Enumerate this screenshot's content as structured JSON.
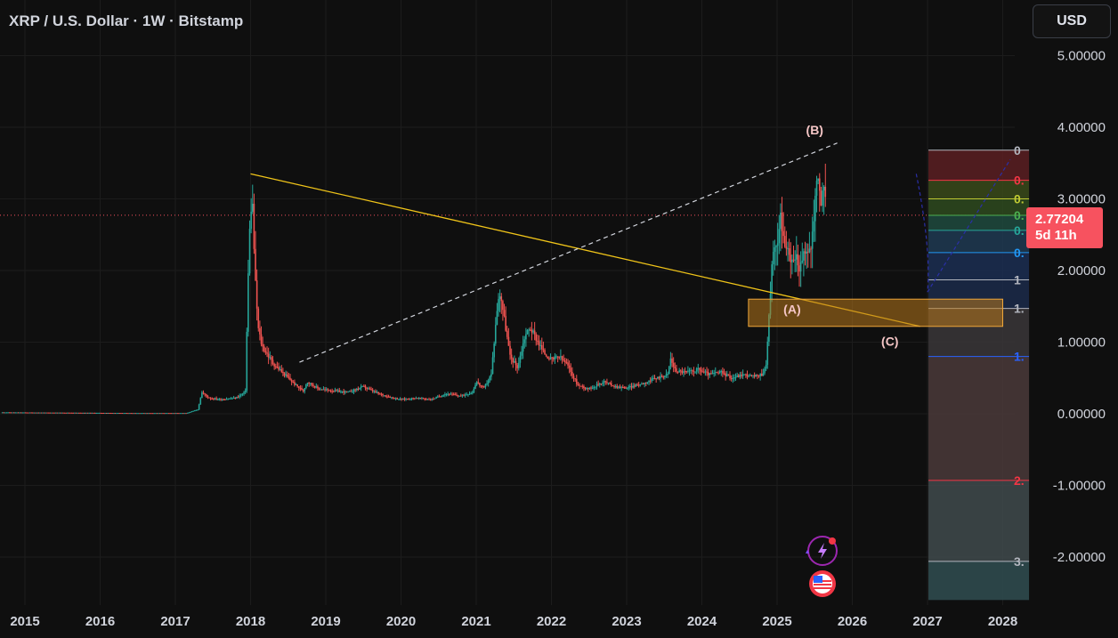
{
  "header": {
    "title": "XRP / U.S. Dollar · 1W · Bitstamp",
    "currency_button": "USD"
  },
  "price_badge": {
    "price": "2.77204",
    "countdown": "5d 11h",
    "color": "#f7525f"
  },
  "fib_labels": [
    {
      "text": "0",
      "color": "#b2b5be",
      "price": 3.68
    },
    {
      "text": "0.",
      "color": "#f23645",
      "price": 3.26
    },
    {
      "text": "0.",
      "color": "#c0ca33",
      "price": 3.0
    },
    {
      "text": "0.",
      "color": "#4caf50",
      "price": 2.77
    },
    {
      "text": "0.",
      "color": "#26a69a",
      "price": 2.56
    },
    {
      "text": "0.",
      "color": "#2196f3",
      "price": 2.25
    },
    {
      "text": "1",
      "color": "#b2b5be",
      "price": 1.87
    },
    {
      "text": "1.",
      "color": "#b2b5be",
      "price": 1.47
    },
    {
      "text": "1.",
      "color": "#2962ff",
      "price": 0.8
    },
    {
      "text": "2.",
      "color": "#f23645",
      "price": -0.93
    },
    {
      "text": "3.",
      "color": "#b2b5be",
      "price": -2.06
    }
  ],
  "wave_labels": [
    {
      "text": "(B)",
      "x": 2025.5,
      "price": 3.9
    },
    {
      "text": "(A)",
      "x": 2025.2,
      "price": 1.4
    },
    {
      "text": "(C)",
      "x": 2026.5,
      "price": 0.95
    }
  ],
  "colors": {
    "background": "#0f0f0f",
    "up": "#26a69a",
    "down": "#ef5350",
    "trendline": "#f0c419",
    "zone_fill": "#b8781b",
    "zone_border": "#f0a73a",
    "current_price_line": "#f7525f"
  },
  "chart_data": {
    "type": "candlestick",
    "title": "XRP / U.S. Dollar · 1W · Bitstamp",
    "x_tick_labels": [
      "2015",
      "2016",
      "2017",
      "2018",
      "2019",
      "2020",
      "2021",
      "2022",
      "2023",
      "2024",
      "2025",
      "2026",
      "2027",
      "2028"
    ],
    "y_tick_labels": [
      "5.00000",
      "4.00000",
      "3.00000",
      "2.00000",
      "1.00000",
      "0.00000",
      "-1.00000",
      "-2.00000"
    ],
    "ylim": [
      -2.6,
      5.5
    ],
    "xlim": [
      2014.7,
      2028.5
    ],
    "current_price": 2.77204,
    "grid": true,
    "price_path": [
      [
        2014.7,
        0.02
      ],
      [
        2016.5,
        0.01
      ],
      [
        2017.15,
        0.01
      ],
      [
        2017.3,
        0.06
      ],
      [
        2017.35,
        0.3
      ],
      [
        2017.45,
        0.22
      ],
      [
        2017.6,
        0.2
      ],
      [
        2017.8,
        0.22
      ],
      [
        2017.93,
        0.3
      ],
      [
        2017.98,
        2.4
      ],
      [
        2018.02,
        3.1
      ],
      [
        2018.06,
        1.9
      ],
      [
        2018.1,
        1.2
      ],
      [
        2018.15,
        0.95
      ],
      [
        2018.3,
        0.7
      ],
      [
        2018.45,
        0.55
      ],
      [
        2018.6,
        0.4
      ],
      [
        2018.7,
        0.32
      ],
      [
        2018.75,
        0.45
      ],
      [
        2018.9,
        0.35
      ],
      [
        2019.1,
        0.32
      ],
      [
        2019.3,
        0.3
      ],
      [
        2019.5,
        0.38
      ],
      [
        2019.7,
        0.28
      ],
      [
        2019.9,
        0.22
      ],
      [
        2020.0,
        0.2
      ],
      [
        2020.2,
        0.22
      ],
      [
        2020.4,
        0.2
      ],
      [
        2020.6,
        0.28
      ],
      [
        2020.8,
        0.25
      ],
      [
        2020.95,
        0.3
      ],
      [
        2021.0,
        0.45
      ],
      [
        2021.1,
        0.35
      ],
      [
        2021.2,
        0.55
      ],
      [
        2021.28,
        1.5
      ],
      [
        2021.32,
        1.7
      ],
      [
        2021.37,
        1.35
      ],
      [
        2021.45,
        0.8
      ],
      [
        2021.55,
        0.65
      ],
      [
        2021.65,
        1.1
      ],
      [
        2021.72,
        1.2
      ],
      [
        2021.8,
        1.05
      ],
      [
        2021.9,
        0.85
      ],
      [
        2022.0,
        0.75
      ],
      [
        2022.1,
        0.8
      ],
      [
        2022.2,
        0.7
      ],
      [
        2022.35,
        0.4
      ],
      [
        2022.5,
        0.35
      ],
      [
        2022.7,
        0.45
      ],
      [
        2022.85,
        0.38
      ],
      [
        2023.0,
        0.36
      ],
      [
        2023.2,
        0.42
      ],
      [
        2023.4,
        0.5
      ],
      [
        2023.55,
        0.55
      ],
      [
        2023.58,
        0.78
      ],
      [
        2023.65,
        0.6
      ],
      [
        2023.8,
        0.58
      ],
      [
        2023.95,
        0.62
      ],
      [
        2024.1,
        0.55
      ],
      [
        2024.25,
        0.58
      ],
      [
        2024.4,
        0.5
      ],
      [
        2024.55,
        0.55
      ],
      [
        2024.7,
        0.52
      ],
      [
        2024.8,
        0.55
      ],
      [
        2024.85,
        0.65
      ],
      [
        2024.88,
        1.1
      ],
      [
        2024.92,
        1.9
      ],
      [
        2024.96,
        2.4
      ],
      [
        2025.0,
        2.2
      ],
      [
        2025.04,
        2.9
      ],
      [
        2025.08,
        2.5
      ],
      [
        2025.12,
        2.3
      ],
      [
        2025.18,
        2.1
      ],
      [
        2025.25,
        2.2
      ],
      [
        2025.3,
        2.05
      ],
      [
        2025.38,
        2.25
      ],
      [
        2025.45,
        2.3
      ],
      [
        2025.5,
        2.9
      ],
      [
        2025.54,
        3.35
      ],
      [
        2025.58,
        3.0
      ],
      [
        2025.62,
        3.1
      ],
      [
        2025.66,
        2.8
      ]
    ],
    "annotations": [
      {
        "type": "trendline",
        "from": [
          2018.0,
          3.35
        ],
        "to": [
          2026.9,
          1.22
        ],
        "color": "#f0c419"
      },
      {
        "type": "dashed_line",
        "from": [
          2018.65,
          0.72
        ],
        "to": [
          2025.8,
          3.78
        ],
        "color": "#d1d4dc"
      },
      {
        "type": "rectangle",
        "x": [
          2024.62,
          2028.0
        ],
        "price": [
          1.22,
          1.6
        ],
        "label": "(A)"
      },
      {
        "type": "fib_extension",
        "x": [
          2027.0,
          2028.35
        ],
        "levels": [
          3.68,
          3.26,
          3.0,
          2.77,
          2.56,
          2.25,
          1.87,
          1.47,
          0.8,
          -0.93,
          -2.06
        ]
      }
    ]
  }
}
